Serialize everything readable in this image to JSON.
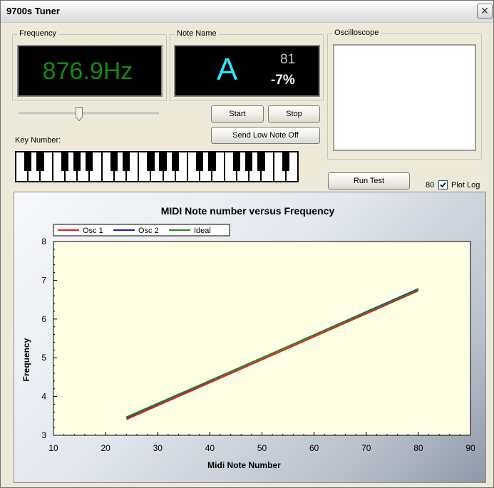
{
  "window": {
    "title": "9700s Tuner",
    "close_glyph": "✕"
  },
  "frequency": {
    "label": "Frequency",
    "value": "876.9Hz",
    "color": "#138a13"
  },
  "note_name": {
    "label": "Note Name",
    "note": "A",
    "key_number": "81",
    "cents": "-7%",
    "note_color": "#2ee6ff"
  },
  "oscilloscope": {
    "label": "Oscilloscope"
  },
  "slider": {
    "value_fraction": 0.44
  },
  "buttons": {
    "start": "Start",
    "stop": "Stop",
    "send_low_note_off": "Send Low Note Off",
    "run_test": "Run Test"
  },
  "keyboard": {
    "label": "Key Number:",
    "white_keys": 23,
    "black_pattern": [
      1,
      1,
      0,
      1,
      1,
      1,
      0
    ]
  },
  "plot_log": {
    "number": "80",
    "label": "Plot Log",
    "checked": true
  },
  "chart_data": {
    "type": "line",
    "title": "MIDI Note number versus Frequency",
    "xlabel": "Midi Note Number",
    "ylabel": "Frequency",
    "xlim": [
      10,
      90
    ],
    "ylim": [
      3,
      8
    ],
    "xticks": [
      10,
      20,
      30,
      40,
      50,
      60,
      70,
      80,
      90
    ],
    "yticks": [
      3,
      4,
      5,
      6,
      7,
      8
    ],
    "legend_placement": "top-left",
    "plot_bg": "#ffffe6",
    "series": [
      {
        "name": "Osc 1",
        "color": "#e81c1c",
        "x": [
          24,
          80
        ],
        "y": [
          3.41,
          6.73
        ]
      },
      {
        "name": "Osc 2",
        "color": "#1a1ac8",
        "x": [
          24,
          80
        ],
        "y": [
          3.45,
          6.78
        ]
      },
      {
        "name": "Ideal",
        "color": "#1c8a1c",
        "x": [
          24,
          80
        ],
        "y": [
          3.47,
          6.76
        ]
      }
    ]
  }
}
